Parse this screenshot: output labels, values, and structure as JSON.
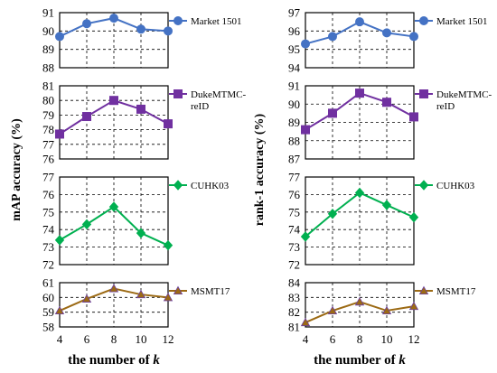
{
  "chart_data": [
    {
      "type": "line",
      "ylabel": "mAP accuracy (%)",
      "xlabel": "the number of k",
      "x": [
        4,
        6,
        8,
        10,
        12
      ],
      "panels": [
        {
          "name": "Market 1501",
          "legend": [
            "Market 1501"
          ],
          "color": "#4472c4",
          "marker": "circle",
          "ylim": [
            88,
            91
          ],
          "yticks": [
            88,
            89,
            90,
            91
          ],
          "values": [
            89.7,
            90.4,
            90.7,
            90.1,
            90.0
          ]
        },
        {
          "name": "DukeMTMC-reID",
          "legend": [
            "DukeMTMC-",
            "reID"
          ],
          "color": "#7030a0",
          "marker": "square",
          "ylim": [
            76,
            81
          ],
          "yticks": [
            76,
            77,
            78,
            79,
            80,
            81
          ],
          "values": [
            77.7,
            78.9,
            80.0,
            79.4,
            78.4
          ]
        },
        {
          "name": "CUHK03",
          "legend": [
            "CUHK03"
          ],
          "color": "#00b050",
          "marker": "diamond",
          "ylim": [
            72,
            77
          ],
          "yticks": [
            72,
            73,
            74,
            75,
            76,
            77
          ],
          "values": [
            73.4,
            74.3,
            75.3,
            73.8,
            73.1
          ]
        },
        {
          "name": "MSMT17",
          "legend": [
            "MSMT17"
          ],
          "color": "#9c6a14",
          "marker": "triangle",
          "ylim": [
            58,
            61
          ],
          "yticks": [
            58,
            59,
            60,
            61
          ],
          "values": [
            59.1,
            59.9,
            60.6,
            60.2,
            60.0
          ]
        }
      ]
    },
    {
      "type": "line",
      "ylabel": "rank-1 accuracy (%)",
      "xlabel": "the number of k",
      "x": [
        4,
        6,
        8,
        10,
        12
      ],
      "panels": [
        {
          "name": "Market 1501",
          "legend": [
            "Market 1501"
          ],
          "color": "#4472c4",
          "marker": "circle",
          "ylim": [
            94,
            97
          ],
          "yticks": [
            94,
            95,
            96,
            97
          ],
          "values": [
            95.3,
            95.7,
            96.5,
            95.9,
            95.7
          ]
        },
        {
          "name": "DukeMTMC-reID",
          "legend": [
            "DukeMTMC-",
            "reID"
          ],
          "color": "#7030a0",
          "marker": "square",
          "ylim": [
            87,
            91
          ],
          "yticks": [
            87,
            88,
            89,
            90,
            91
          ],
          "values": [
            88.6,
            89.5,
            90.6,
            90.1,
            89.3
          ]
        },
        {
          "name": "CUHK03",
          "legend": [
            "CUHK03"
          ],
          "color": "#00b050",
          "marker": "diamond",
          "ylim": [
            72,
            77
          ],
          "yticks": [
            72,
            73,
            74,
            75,
            76,
            77
          ],
          "values": [
            73.6,
            74.9,
            76.1,
            75.4,
            74.7
          ]
        },
        {
          "name": "MSMT17",
          "legend": [
            "MSMT17"
          ],
          "color": "#9c6a14",
          "marker": "triangle",
          "ylim": [
            81,
            84
          ],
          "yticks": [
            81,
            82,
            83,
            84
          ],
          "values": [
            81.3,
            82.1,
            82.7,
            82.1,
            82.4
          ]
        }
      ]
    }
  ]
}
